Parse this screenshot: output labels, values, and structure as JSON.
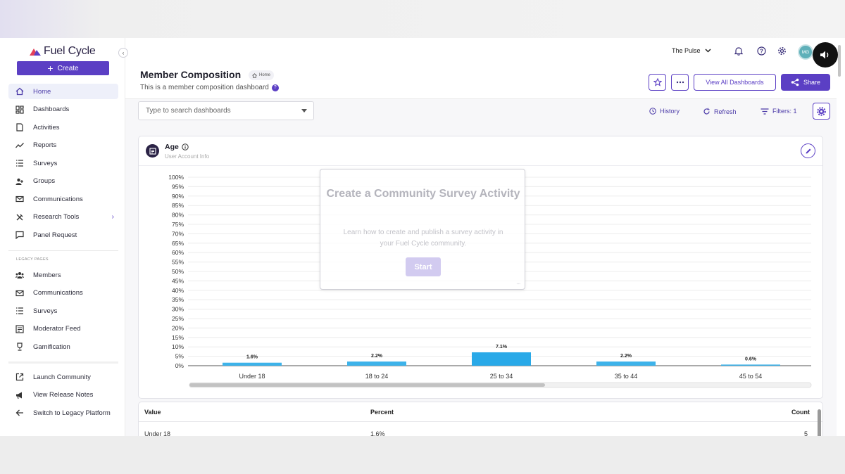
{
  "app": {
    "logo_text": "Fuel Cycle",
    "create_label": "Create"
  },
  "sidebar": {
    "items": [
      {
        "label": "Home",
        "icon": "home-icon"
      },
      {
        "label": "Dashboards",
        "icon": "dashboard-icon"
      },
      {
        "label": "Activities",
        "icon": "document-icon"
      },
      {
        "label": "Reports",
        "icon": "trend-icon"
      },
      {
        "label": "Surveys",
        "icon": "list-icon"
      },
      {
        "label": "Groups",
        "icon": "users-icon"
      },
      {
        "label": "Communications",
        "icon": "mail-icon"
      },
      {
        "label": "Research Tools",
        "icon": "tools-icon"
      },
      {
        "label": "Panel Request",
        "icon": "message-icon"
      }
    ],
    "legacy_label": "LEGACY PAGES",
    "legacy_items": [
      {
        "label": "Members",
        "icon": "members-icon"
      },
      {
        "label": "Communications",
        "icon": "mail-icon"
      },
      {
        "label": "Surveys",
        "icon": "list-icon"
      },
      {
        "label": "Moderator Feed",
        "icon": "feed-icon"
      },
      {
        "label": "Gamification",
        "icon": "trophy-icon"
      }
    ],
    "bottom_items": [
      {
        "label": "Launch Community",
        "icon": "external-link-icon"
      },
      {
        "label": "View Release Notes",
        "icon": "megaphone-icon"
      },
      {
        "label": "Switch to Legacy Platform",
        "icon": "arrow-left-icon"
      }
    ]
  },
  "header": {
    "community": "The Pulse",
    "avatar_initials": "MG"
  },
  "page": {
    "title": "Member Composition",
    "breadcrumb": "Home",
    "subtitle": "This is a member composition dashboard",
    "view_all_label": "View All Dashboards",
    "share_label": "Share"
  },
  "toolbar": {
    "search_placeholder": "Type to search dashboards",
    "history_label": "History",
    "refresh_label": "Refresh",
    "filters_label": "Filters: 1"
  },
  "card": {
    "title": "Age",
    "subtitle": "User Account Info"
  },
  "chart_data": {
    "type": "bar",
    "categories": [
      "Under 18",
      "18 to 24",
      "25 to 34",
      "35 to 44",
      "45 to 54"
    ],
    "values": [
      1.6,
      2.2,
      7.1,
      2.2,
      0.6
    ],
    "value_labels": [
      "1.6%",
      "2.2%",
      "7.1%",
      "2.2%",
      "0.6%"
    ],
    "ylim": [
      0,
      100
    ],
    "yticks": [
      "0%",
      "5%",
      "10%",
      "15%",
      "20%",
      "25%",
      "30%",
      "35%",
      "40%",
      "45%",
      "50%",
      "55%",
      "60%",
      "65%",
      "70%",
      "75%",
      "80%",
      "85%",
      "90%",
      "95%",
      "100%"
    ],
    "grid": true,
    "bar_color": "#3db3ea",
    "highlight_color": "#29a9e8"
  },
  "modal": {
    "title": "Create a Community Survey Activity",
    "description": "Learn how to create and publish a survey activity in your Fuel Cycle community.",
    "start_label": "Start"
  },
  "table": {
    "headers": {
      "value": "Value",
      "percent": "Percent",
      "count": "Count"
    },
    "rows": [
      {
        "value": "Under 18",
        "percent": "1.6%",
        "count": "5"
      }
    ]
  },
  "colors": {
    "accent": "#5b3fc4",
    "logo": "#e4405a"
  }
}
